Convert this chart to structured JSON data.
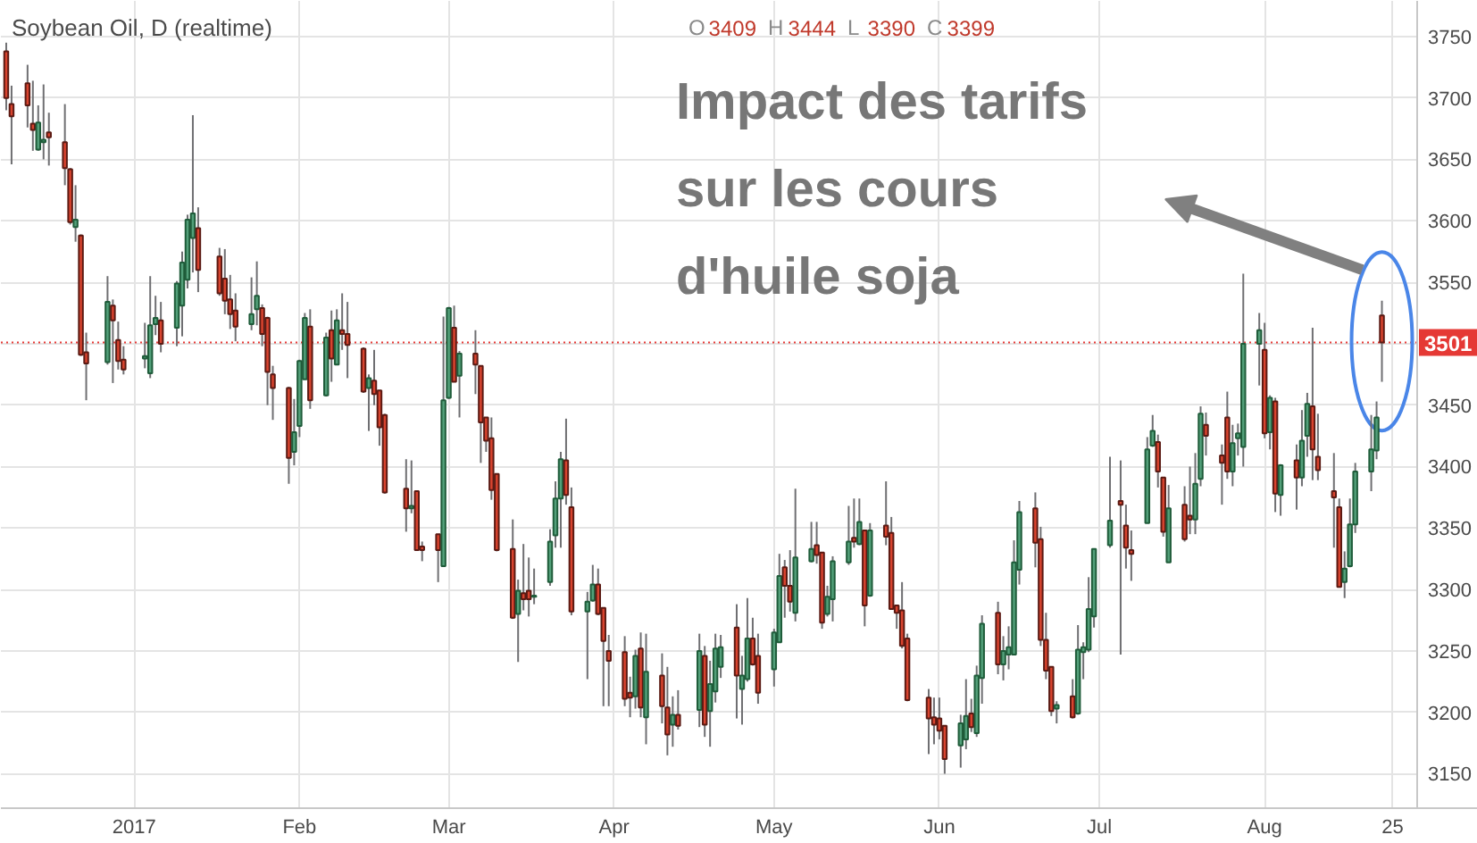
{
  "chart_data": {
    "type": "candlestick",
    "title": "Soybean Oil, D (realtime)",
    "annotations": [
      "O 3409 H 3444 L 3390 C 3399",
      "Impact des tarifs sur les cours d'huile soja"
    ],
    "x": [
      "2016-12-08",
      "2016-12-09",
      "2016-12-12",
      "2016-12-13",
      "2016-12-14",
      "2016-12-15",
      "2016-12-16",
      "2016-12-19",
      "2016-12-20",
      "2016-12-21",
      "2016-12-22",
      "2016-12-23",
      "2016-12-27",
      "2016-12-28",
      "2016-12-29",
      "2016-12-30",
      "2017-01-03",
      "2017-01-04",
      "2017-01-05",
      "2017-01-06",
      "2017-01-09",
      "2017-01-10",
      "2017-01-11",
      "2017-01-12",
      "2017-01-13",
      "2017-01-17",
      "2017-01-18",
      "2017-01-19",
      "2017-01-20",
      "2017-01-23",
      "2017-01-24",
      "2017-01-25",
      "2017-01-26",
      "2017-01-27",
      "2017-01-30",
      "2017-01-31",
      "2017-02-01",
      "2017-02-02",
      "2017-02-03",
      "2017-02-06",
      "2017-02-07",
      "2017-02-08",
      "2017-02-09",
      "2017-02-10",
      "2017-02-13",
      "2017-02-14",
      "2017-02-15",
      "2017-02-16",
      "2017-02-17",
      "2017-02-21",
      "2017-02-22",
      "2017-02-23",
      "2017-02-24",
      "2017-02-27",
      "2017-02-28",
      "2017-03-01",
      "2017-03-02",
      "2017-03-03",
      "2017-03-06",
      "2017-03-07",
      "2017-03-08",
      "2017-03-09",
      "2017-03-10",
      "2017-03-13",
      "2017-03-14",
      "2017-03-15",
      "2017-03-16",
      "2017-03-17",
      "2017-03-20",
      "2017-03-21",
      "2017-03-22",
      "2017-03-23",
      "2017-03-24",
      "2017-03-27",
      "2017-03-28",
      "2017-03-29",
      "2017-03-30",
      "2017-03-31",
      "2017-04-03",
      "2017-04-04",
      "2017-04-05",
      "2017-04-06",
      "2017-04-07",
      "2017-04-10",
      "2017-04-11",
      "2017-04-12",
      "2017-04-13",
      "2017-04-17",
      "2017-04-18",
      "2017-04-19",
      "2017-04-20",
      "2017-04-21",
      "2017-04-24",
      "2017-04-25",
      "2017-04-26",
      "2017-04-27",
      "2017-04-28",
      "2017-05-01",
      "2017-05-02",
      "2017-05-03",
      "2017-05-04",
      "2017-05-05",
      "2017-05-08",
      "2017-05-09",
      "2017-05-10",
      "2017-05-11",
      "2017-05-12",
      "2017-05-15",
      "2017-05-16",
      "2017-05-17",
      "2017-05-18",
      "2017-05-19",
      "2017-05-22",
      "2017-05-23",
      "2017-05-24",
      "2017-05-25",
      "2017-05-26",
      "2017-05-30",
      "2017-05-31",
      "2017-06-01",
      "2017-06-02",
      "2017-06-05",
      "2017-06-06",
      "2017-06-07",
      "2017-06-08",
      "2017-06-09",
      "2017-06-12",
      "2017-06-13",
      "2017-06-14",
      "2017-06-15",
      "2017-06-16",
      "2017-06-19",
      "2017-06-20",
      "2017-06-21",
      "2017-06-22",
      "2017-06-23",
      "2017-06-26",
      "2017-06-27",
      "2017-06-28",
      "2017-06-29",
      "2017-06-30",
      "2017-07-03",
      "2017-07-05",
      "2017-07-06",
      "2017-07-07",
      "2017-07-10",
      "2017-07-11",
      "2017-07-12",
      "2017-07-13",
      "2017-07-14",
      "2017-07-17",
      "2017-07-18",
      "2017-07-19",
      "2017-07-20",
      "2017-07-21",
      "2017-07-24",
      "2017-07-25",
      "2017-07-26",
      "2017-07-27",
      "2017-07-28",
      "2017-07-31",
      "2017-08-01",
      "2017-08-02",
      "2017-08-03",
      "2017-08-04",
      "2017-08-07",
      "2017-08-08",
      "2017-08-09",
      "2017-08-10",
      "2017-08-11",
      "2017-08-14",
      "2017-08-15",
      "2017-08-16",
      "2017-08-17",
      "2017-08-18",
      "2017-08-21",
      "2017-08-22",
      "2017-08-23"
    ],
    "ohlc": [
      [
        3738,
        3745,
        3690,
        3700
      ],
      [
        3695,
        3710,
        3646,
        3685
      ],
      [
        3712,
        3727,
        3676,
        3694
      ],
      [
        3679,
        3714,
        3657,
        3674
      ],
      [
        3658,
        3694,
        3657,
        3680
      ],
      [
        3664,
        3711,
        3650,
        3666
      ],
      [
        3672,
        3688,
        3645,
        3668
      ],
      [
        3664,
        3695,
        3629,
        3643
      ],
      [
        3642,
        3643,
        3597,
        3599
      ],
      [
        3595,
        3629,
        3583,
        3601
      ],
      [
        3588,
        3589,
        3490,
        3491
      ],
      [
        3493,
        3509,
        3454,
        3484
      ],
      [
        3485,
        3555,
        3483,
        3534
      ],
      [
        3531,
        3536,
        3468,
        3519
      ],
      [
        3503,
        3518,
        3479,
        3486
      ],
      [
        3487,
        3498,
        3475,
        3479
      ],
      [
        3488,
        3517,
        3480,
        3490
      ],
      [
        3476,
        3555,
        3472,
        3515
      ],
      [
        3516,
        3539,
        3507,
        3521
      ],
      [
        3519,
        3534,
        3493,
        3500
      ],
      [
        3513,
        3551,
        3498,
        3549
      ],
      [
        3531,
        3575,
        3506,
        3566
      ],
      [
        3552,
        3605,
        3545,
        3601
      ],
      [
        3586,
        3686,
        3558,
        3606
      ],
      [
        3594,
        3611,
        3542,
        3560
      ],
      [
        3571,
        3578,
        3539,
        3541
      ],
      [
        3553,
        3577,
        3524,
        3535
      ],
      [
        3536,
        3556,
        3512,
        3524
      ],
      [
        3527,
        3541,
        3502,
        3514
      ],
      [
        3516,
        3554,
        3511,
        3524
      ],
      [
        3528,
        3567,
        3515,
        3539
      ],
      [
        3529,
        3532,
        3498,
        3508
      ],
      [
        3521,
        3522,
        3450,
        3477
      ],
      [
        3475,
        3482,
        3438,
        3464
      ],
      [
        3464,
        3465,
        3386,
        3407
      ],
      [
        3412,
        3455,
        3401,
        3428
      ],
      [
        3433,
        3487,
        3424,
        3486
      ],
      [
        3471,
        3525,
        3471,
        3521
      ],
      [
        3514,
        3528,
        3447,
        3454
      ],
      [
        3458,
        3509,
        3457,
        3505
      ],
      [
        3511,
        3527,
        3469,
        3488
      ],
      [
        3483,
        3528,
        3483,
        3519
      ],
      [
        3511,
        3541,
        3495,
        3508
      ],
      [
        3508,
        3534,
        3472,
        3499
      ],
      [
        3496,
        3497,
        3460,
        3461
      ],
      [
        3464,
        3475,
        3429,
        3472
      ],
      [
        3470,
        3495,
        3450,
        3459
      ],
      [
        3462,
        3462,
        3417,
        3432
      ],
      [
        3442,
        3443,
        3378,
        3379
      ],
      [
        3382,
        3406,
        3347,
        3366
      ],
      [
        3366,
        3405,
        3362,
        3368
      ],
      [
        3380,
        3380,
        3332,
        3332
      ],
      [
        3335,
        3339,
        3323,
        3332
      ],
      [
        3345,
        3345,
        3306,
        3332
      ],
      [
        3319,
        3522,
        3319,
        3454
      ],
      [
        3456,
        3530,
        3455,
        3529
      ],
      [
        3513,
        3531,
        3469,
        3469
      ],
      [
        3474,
        3494,
        3440,
        3492
      ],
      [
        3492,
        3511,
        3459,
        3483
      ],
      [
        3482,
        3482,
        3403,
        3436
      ],
      [
        3440,
        3440,
        3412,
        3421
      ],
      [
        3423,
        3440,
        3373,
        3381
      ],
      [
        3394,
        3394,
        3331,
        3332
      ],
      [
        3333,
        3357,
        3276,
        3277
      ],
      [
        3280,
        3308,
        3241,
        3299
      ],
      [
        3297,
        3337,
        3283,
        3292
      ],
      [
        3299,
        3326,
        3278,
        3292
      ],
      [
        3294,
        3317,
        3288,
        3295
      ],
      [
        3306,
        3349,
        3303,
        3339
      ],
      [
        3344,
        3388,
        3334,
        3374
      ],
      [
        3374,
        3412,
        3334,
        3406
      ],
      [
        3405,
        3439,
        3369,
        3377
      ],
      [
        3367,
        3383,
        3279,
        3282
      ],
      [
        3282,
        3298,
        3227,
        3290
      ],
      [
        3291,
        3320,
        3290,
        3304
      ],
      [
        3304,
        3317,
        3279,
        3280
      ],
      [
        3285,
        3285,
        3205,
        3258
      ],
      [
        3250,
        3263,
        3205,
        3242
      ],
      [
        3249,
        3262,
        3205,
        3211
      ],
      [
        3216,
        3229,
        3196,
        3212
      ],
      [
        3213,
        3251,
        3203,
        3246
      ],
      [
        3252,
        3265,
        3196,
        3204
      ],
      [
        3196,
        3264,
        3174,
        3233
      ],
      [
        3230,
        3248,
        3191,
        3205
      ],
      [
        3204,
        3237,
        3165,
        3182
      ],
      [
        3190,
        3213,
        3172,
        3198
      ],
      [
        3198,
        3218,
        3186,
        3189
      ],
      [
        3202,
        3264,
        3188,
        3250
      ],
      [
        3246,
        3254,
        3180,
        3190
      ],
      [
        3201,
        3242,
        3172,
        3223
      ],
      [
        3217,
        3264,
        3208,
        3252
      ],
      [
        3237,
        3263,
        3228,
        3253
      ],
      [
        3269,
        3288,
        3195,
        3230
      ],
      [
        3219,
        3246,
        3190,
        3230
      ],
      [
        3227,
        3293,
        3225,
        3260
      ],
      [
        3260,
        3277,
        3238,
        3239
      ],
      [
        3246,
        3264,
        3207,
        3216
      ],
      [
        3235,
        3268,
        3221,
        3265
      ],
      [
        3257,
        3329,
        3257,
        3311
      ],
      [
        3318,
        3324,
        3277,
        3303
      ],
      [
        3303,
        3332,
        3282,
        3290
      ],
      [
        3281,
        3382,
        3274,
        3326
      ],
      [
        3323,
        3355,
        3322,
        3333
      ],
      [
        3336,
        3355,
        3321,
        3328
      ],
      [
        3330,
        3330,
        3268,
        3273
      ],
      [
        3280,
        3303,
        3278,
        3294
      ],
      [
        3292,
        3327,
        3274,
        3323
      ],
      [
        3322,
        3368,
        3320,
        3339
      ],
      [
        3342,
        3374,
        3334,
        3339
      ],
      [
        3337,
        3374,
        3336,
        3355
      ],
      [
        3348,
        3348,
        3270,
        3287
      ],
      [
        3295,
        3354,
        3294,
        3348
      ],
      [
        3352,
        3388,
        3336,
        3343
      ],
      [
        3346,
        3359,
        3284,
        3284
      ],
      [
        3287,
        3287,
        3268,
        3281
      ],
      [
        3283,
        3306,
        3252,
        3254
      ],
      [
        3260,
        3264,
        3209,
        3210
      ],
      [
        3212,
        3219,
        3166,
        3195
      ],
      [
        3196,
        3212,
        3174,
        3190
      ],
      [
        3195,
        3212,
        3178,
        3185
      ],
      [
        3189,
        3189,
        3150,
        3162
      ],
      [
        3173,
        3198,
        3155,
        3191
      ],
      [
        3178,
        3227,
        3170,
        3197
      ],
      [
        3199,
        3211,
        3184,
        3188
      ],
      [
        3183,
        3238,
        3180,
        3230
      ],
      [
        3228,
        3279,
        3207,
        3272
      ],
      [
        3281,
        3290,
        3231,
        3239
      ],
      [
        3239,
        3262,
        3226,
        3250
      ],
      [
        3247,
        3270,
        3235,
        3253
      ],
      [
        3247,
        3340,
        3247,
        3322
      ],
      [
        3316,
        3372,
        3304,
        3363
      ],
      [
        3366,
        3379,
        3318,
        3338
      ],
      [
        3341,
        3351,
        3254,
        3259
      ],
      [
        3259,
        3281,
        3227,
        3234
      ],
      [
        3237,
        3237,
        3197,
        3201
      ],
      [
        3203,
        3209,
        3191,
        3206
      ],
      [
        3213,
        3227,
        3195,
        3196
      ],
      [
        3199,
        3271,
        3198,
        3251
      ],
      [
        3249,
        3257,
        3227,
        3253
      ],
      [
        3251,
        3310,
        3249,
        3284
      ],
      [
        3278,
        3333,
        3269,
        3333
      ],
      [
        3336,
        3408,
        3334,
        3356
      ],
      [
        3372,
        3405,
        3247,
        3369
      ],
      [
        3352,
        3369,
        3317,
        3334
      ],
      [
        3332,
        3348,
        3307,
        3329
      ],
      [
        3354,
        3424,
        3354,
        3414
      ],
      [
        3417,
        3442,
        3416,
        3429
      ],
      [
        3420,
        3426,
        3383,
        3396
      ],
      [
        3391,
        3391,
        3343,
        3347
      ],
      [
        3322,
        3385,
        3322,
        3366
      ],
      [
        3369,
        3384,
        3339,
        3341
      ],
      [
        3360,
        3400,
        3345,
        3357
      ],
      [
        3357,
        3411,
        3345,
        3386
      ],
      [
        3390,
        3449,
        3384,
        3443
      ],
      [
        3434,
        3444,
        3409,
        3425
      ],
      [
        3409,
        3418,
        3369,
        3403
      ],
      [
        3440,
        3461,
        3390,
        3396
      ],
      [
        3396,
        3434,
        3384,
        3419
      ],
      [
        3423,
        3435,
        3409,
        3427
      ],
      [
        3416,
        3557,
        3400,
        3500
      ],
      [
        3500,
        3525,
        3466,
        3511
      ],
      [
        3495,
        3517,
        3423,
        3427
      ],
      [
        3428,
        3458,
        3414,
        3456
      ],
      [
        3453,
        3456,
        3363,
        3378
      ],
      [
        3377,
        3402,
        3360,
        3401
      ],
      [
        3405,
        3418,
        3365,
        3391
      ],
      [
        3391,
        3446,
        3384,
        3421
      ],
      [
        3425,
        3460,
        3408,
        3451
      ],
      [
        3449,
        3513,
        3389,
        3414
      ],
      [
        3408,
        3443,
        3389,
        3397
      ],
      [
        3380,
        3411,
        3334,
        3375
      ],
      [
        3367,
        3374,
        3302,
        3302
      ],
      [
        3306,
        3331,
        3293,
        3317
      ],
      [
        3319,
        3374,
        3318,
        3353
      ],
      [
        3353,
        3403,
        3346,
        3396
      ],
      [
        3396,
        3442,
        3380,
        3414
      ],
      [
        3413,
        3453,
        3406,
        3440
      ],
      [
        3523,
        3535,
        3469,
        3501
      ]
    ],
    "xlim": [
      "2016-12-07",
      "2017-09-10"
    ],
    "ylim": [
      3122,
      3779
    ],
    "xticks": [
      {
        "value": "2017-01-01",
        "label": "2017"
      },
      {
        "value": "2017-02-01",
        "label": "Feb"
      },
      {
        "value": "2017-03-01",
        "label": "Mar"
      },
      {
        "value": "2017-04-01",
        "label": "Apr"
      },
      {
        "value": "2017-05-01",
        "label": "May"
      },
      {
        "value": "2017-06-01",
        "label": "Jun"
      },
      {
        "value": "2017-07-01",
        "label": "Jul"
      },
      {
        "value": "2017-08-01",
        "label": "Aug"
      },
      {
        "value": "2017-08-25",
        "label": "25"
      }
    ],
    "yticks": [
      3150,
      3200,
      3250,
      3300,
      3350,
      3400,
      3450,
      {
        "value": 3500,
        "label": null
      },
      3550,
      3600,
      3650,
      3700,
      3750
    ],
    "grid": true,
    "ref_lines": [
      {
        "axis": "y",
        "value": 3501,
        "label": "3501",
        "color": "#e53935",
        "line_style": "dotted"
      }
    ]
  }
}
